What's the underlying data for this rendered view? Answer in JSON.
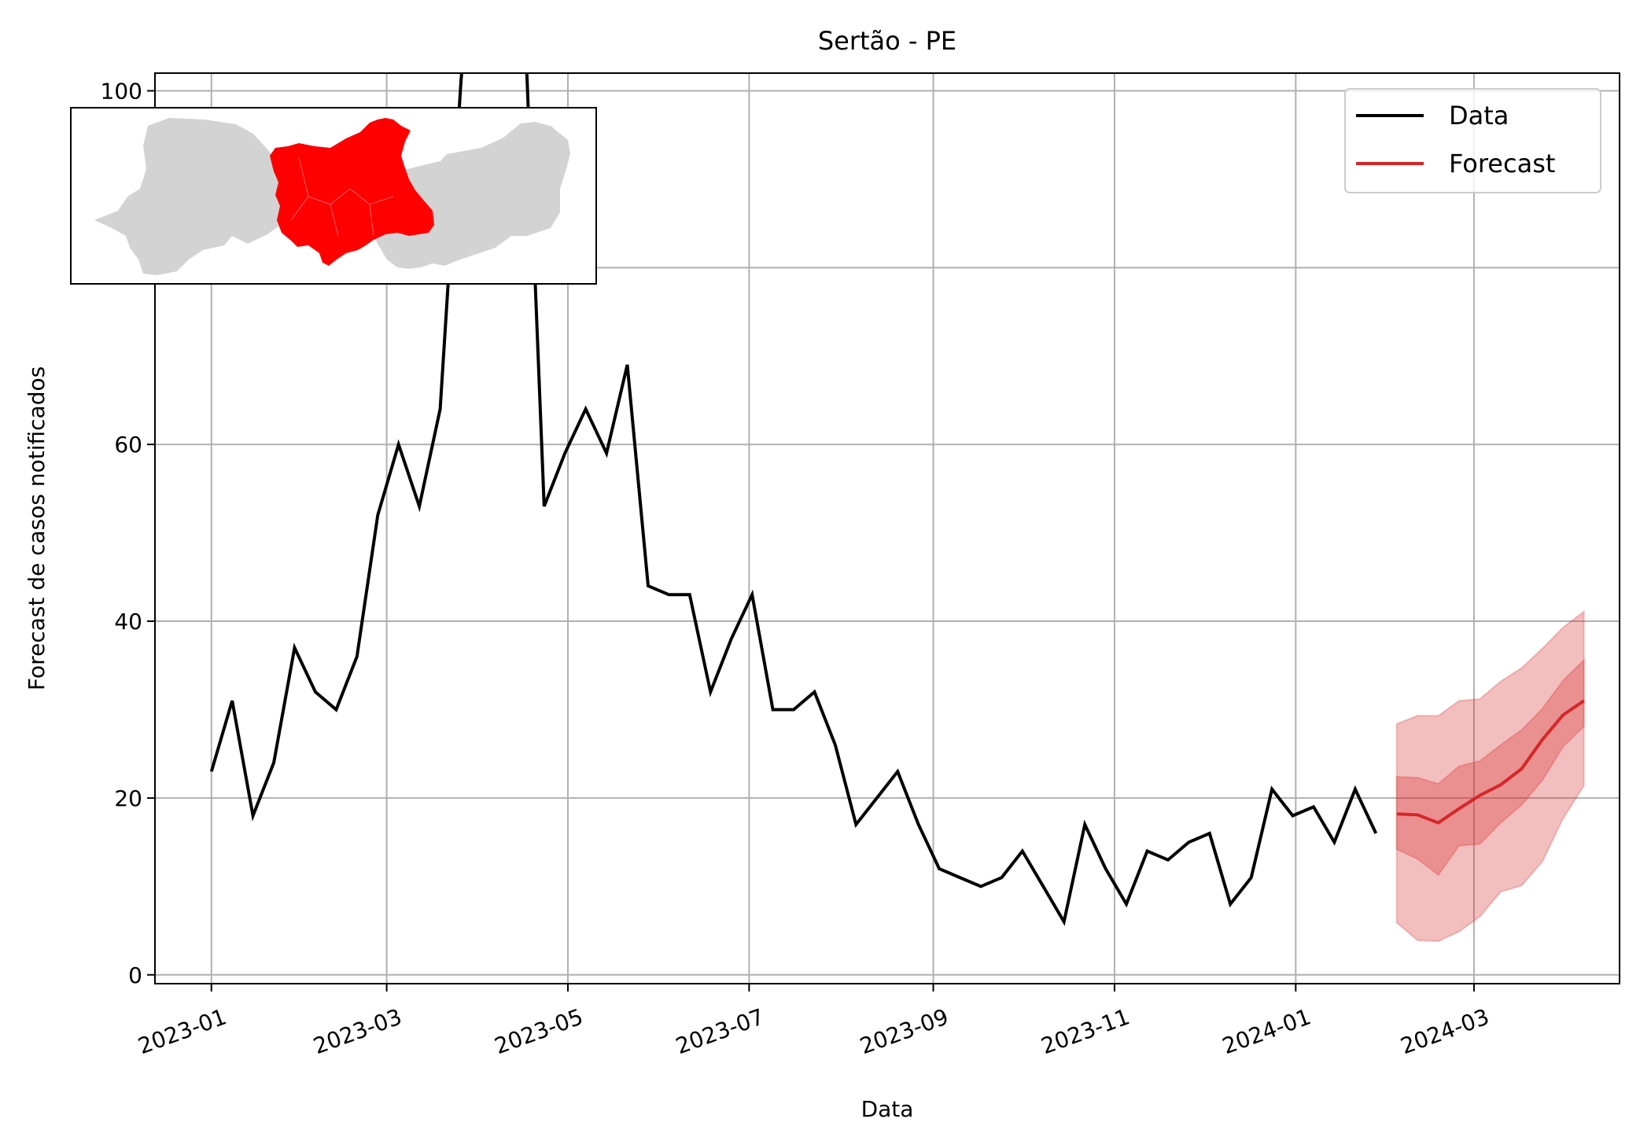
{
  "chart_data": {
    "type": "line",
    "title": "Sertão - PE",
    "xlabel": "Data",
    "ylabel": "Forecast de casos notificados",
    "x_ticks": [
      "2023-01",
      "2023-03",
      "2023-05",
      "2023-07",
      "2023-09",
      "2023-11",
      "2024-01",
      "2024-03"
    ],
    "y_ticks": [
      0,
      20,
      40,
      60,
      80,
      100
    ],
    "ylim": [
      -1,
      102
    ],
    "grid": true,
    "legend_position": "top-right",
    "series": [
      {
        "name": "Data",
        "color": "#000000",
        "x": [
          "2023-01-01",
          "2023-01-08",
          "2023-01-15",
          "2023-01-22",
          "2023-01-29",
          "2023-02-05",
          "2023-02-12",
          "2023-02-19",
          "2023-02-26",
          "2023-03-05",
          "2023-03-12",
          "2023-03-19",
          "2023-03-26",
          "2023-04-02",
          "2023-04-09",
          "2023-04-16",
          "2023-04-23",
          "2023-04-30",
          "2023-05-07",
          "2023-05-14",
          "2023-05-21",
          "2023-05-28",
          "2023-06-04",
          "2023-06-11",
          "2023-06-18",
          "2023-06-25",
          "2023-07-02",
          "2023-07-09",
          "2023-07-16",
          "2023-07-23",
          "2023-07-30",
          "2023-08-06",
          "2023-08-13",
          "2023-08-20",
          "2023-08-27",
          "2023-09-03",
          "2023-09-10",
          "2023-09-17",
          "2023-09-24",
          "2023-10-01",
          "2023-10-08",
          "2023-10-15",
          "2023-10-22",
          "2023-10-29",
          "2023-11-05",
          "2023-11-12",
          "2023-11-19",
          "2023-11-26",
          "2023-12-03",
          "2023-12-10",
          "2023-12-17",
          "2023-12-24",
          "2023-12-31",
          "2024-01-07",
          "2024-01-14",
          "2024-01-21",
          "2024-01-28"
        ],
        "y": [
          23,
          31,
          18,
          24,
          37,
          32,
          30,
          36,
          52,
          60,
          53,
          64,
          101,
          130,
          120,
          112,
          53,
          59,
          64,
          59,
          69,
          44,
          43,
          43,
          32,
          38,
          43,
          30,
          30,
          32,
          26,
          17,
          20,
          23,
          17,
          12,
          11,
          10,
          11,
          14,
          10,
          6,
          17,
          12,
          8,
          14,
          13,
          15,
          16,
          8,
          11,
          21,
          18,
          19,
          15,
          21,
          16
        ]
      },
      {
        "name": "Forecast",
        "color": "#d62728",
        "x": [
          "2024-02-04",
          "2024-02-11",
          "2024-02-18",
          "2024-02-25",
          "2024-03-03",
          "2024-03-10",
          "2024-03-17",
          "2024-03-24",
          "2024-03-31",
          "2024-04-07"
        ],
        "y": [
          18.2,
          18.1,
          17.2,
          18.8,
          20.3,
          21.5,
          23.3,
          26.6,
          29.4,
          31.0
        ],
        "lower_inner": [
          14.2,
          13.1,
          11.3,
          14.6,
          14.8,
          17.2,
          19.2,
          22.0,
          25.8,
          28.1
        ],
        "upper_inner": [
          22.4,
          22.3,
          21.6,
          23.6,
          24.2,
          26.0,
          27.7,
          30.1,
          33.3,
          35.6
        ],
        "lower_outer": [
          5.9,
          3.9,
          3.8,
          4.9,
          6.6,
          9.4,
          10.1,
          12.8,
          17.7,
          21.4
        ],
        "upper_outer": [
          28.4,
          29.3,
          29.3,
          31.0,
          31.2,
          33.2,
          34.7,
          36.9,
          39.3,
          41.1
        ]
      }
    ],
    "inset_map": {
      "highlight_color": "#ff0000",
      "base_color": "#d3d3d3"
    }
  }
}
